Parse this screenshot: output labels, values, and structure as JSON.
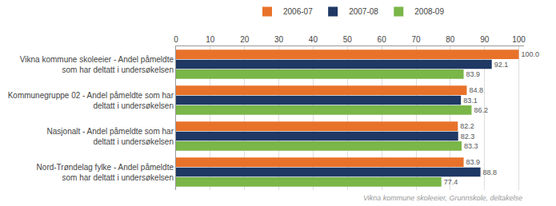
{
  "chart_data": {
    "type": "bar",
    "orientation": "horizontal",
    "categories": [
      "Vikna kommune skoleeier - Andel påmeldte\nsom har deltatt i undersøkelsen",
      "Kommunegruppe 02 - Andel påmeldte som har\ndeltatt i undersøkelsen",
      "Nasjonalt - Andel påmeldte som har\ndeltatt i undersøkelsen",
      "Nord-Trøndelag fylke - Andel påmeldte\nsom har deltatt i undersøkelsen"
    ],
    "series": [
      {
        "name": "2006-07",
        "color": "#E8722A",
        "values": [
          100.0,
          84.8,
          82.2,
          83.9
        ],
        "value_labels": [
          "100.0",
          "84.8",
          "82.2",
          "83.9"
        ]
      },
      {
        "name": "2007-08",
        "color": "#1F3864",
        "values": [
          92.1,
          83.1,
          82.3,
          88.8
        ],
        "value_labels": [
          "92.1",
          "83.1",
          "82.3",
          "88.8"
        ]
      },
      {
        "name": "2008-09",
        "color": "#7AB648",
        "values": [
          83.9,
          86.2,
          83.3,
          77.4
        ],
        "value_labels": [
          "83.9",
          "86.2",
          "83.3",
          "77.4"
        ]
      }
    ],
    "xlim": [
      0,
      101.5
    ],
    "xticks": [
      0,
      10,
      20,
      30,
      40,
      50,
      60,
      70,
      80,
      90,
      100
    ],
    "grid": true,
    "legend": "top",
    "data_labels": true,
    "annotations": [
      "Vikna kommune skoleeier, Grunnskole, deltakelse"
    ]
  }
}
